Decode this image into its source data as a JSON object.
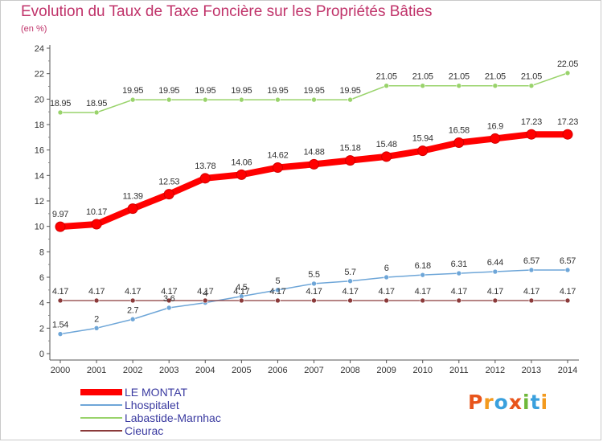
{
  "chart_data": {
    "type": "line",
    "title": "Evolution du Taux de Taxe Foncière sur les Propriétés Bâties",
    "subtitle": "(en %)",
    "x": [
      2000,
      2001,
      2002,
      2003,
      2004,
      2005,
      2006,
      2007,
      2008,
      2009,
      2010,
      2011,
      2012,
      2013,
      2014
    ],
    "x_labels": [
      "2000",
      "2001",
      "2002",
      "2003",
      "2004",
      "2005",
      "2006",
      "2007",
      "2008",
      "2009",
      "2010",
      "2011",
      "2012",
      "2013",
      "2014"
    ],
    "ylim": [
      0,
      24
    ],
    "yticks": [
      0,
      2,
      4,
      6,
      8,
      10,
      12,
      14,
      16,
      18,
      20,
      22,
      24
    ],
    "grid": false,
    "legend_position": "bottom-left",
    "series": [
      {
        "name": "LE MONTAT",
        "color": "#ff0000",
        "values": [
          9.97,
          10.17,
          11.39,
          12.53,
          13.78,
          14.06,
          14.62,
          14.88,
          15.18,
          15.48,
          15.94,
          16.58,
          16.9,
          17.23,
          17.23
        ],
        "labels": [
          "9.97",
          "10.17",
          "11.39",
          "12.53",
          "13.78",
          "14.06",
          "14.62",
          "14.88",
          "15.18",
          "15.48",
          "15.94",
          "16.58",
          "16.9",
          "17.23",
          "17.23"
        ]
      },
      {
        "name": "Lhospitalet",
        "color": "#6ea6d8",
        "values": [
          1.54,
          2,
          2.7,
          3.6,
          4,
          4.5,
          5,
          5.5,
          5.7,
          6,
          6.18,
          6.31,
          6.44,
          6.57,
          6.57
        ],
        "labels": [
          "1.54",
          "2",
          "2.7",
          "3.6",
          "4",
          "4.5",
          "5",
          "5.5",
          "5.7",
          "6",
          "6.18",
          "6.31",
          "6.44",
          "6.57",
          "6.57"
        ]
      },
      {
        "name": "Labastide-Marnhac",
        "color": "#99d36b",
        "values": [
          18.95,
          18.95,
          19.95,
          19.95,
          19.95,
          19.95,
          19.95,
          19.95,
          19.95,
          21.05,
          21.05,
          21.05,
          21.05,
          21.05,
          22.05
        ],
        "labels": [
          "18.95",
          "18.95",
          "19.95",
          "19.95",
          "19.95",
          "19.95",
          "19.95",
          "19.95",
          "19.95",
          "21.05",
          "21.05",
          "21.05",
          "21.05",
          "21.05",
          "22.05"
        ]
      },
      {
        "name": "Cieurac",
        "color": "#8b3a3a",
        "values": [
          4.17,
          4.17,
          4.17,
          4.17,
          4.17,
          4.17,
          4.17,
          4.17,
          4.17,
          4.17,
          4.17,
          4.17,
          4.17,
          4.17,
          4.17
        ],
        "labels": [
          "4.17",
          "4.17",
          "4.17",
          "4.17",
          "4.17",
          "4.17",
          "4.17",
          "4.17",
          "4.17",
          "4.17",
          "4.17",
          "4.17",
          "4.17",
          "4.17",
          "4.17"
        ]
      }
    ]
  },
  "logo": {
    "text": "Proxiti",
    "letter_colors": [
      "#e8551c",
      "#f39a1e",
      "#3aa0dd",
      "#e8551c",
      "#6fb83a",
      "#3aa0dd",
      "#f39a1e"
    ]
  }
}
